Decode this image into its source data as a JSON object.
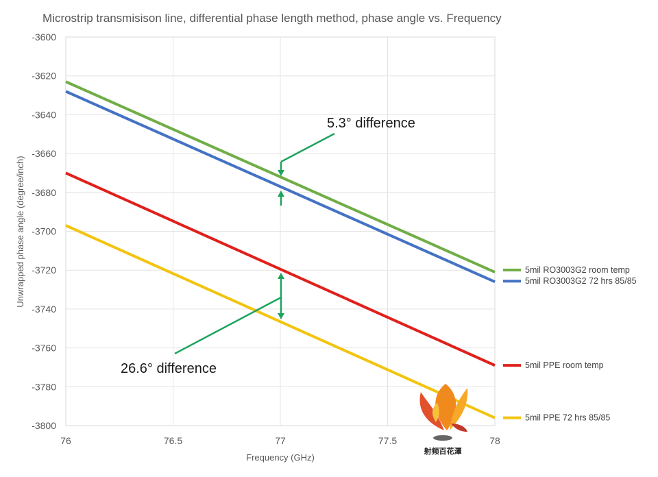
{
  "chart_data": {
    "type": "line",
    "title": "Microstrip transmisison line, differential phase length method, phase angle vs. Frequency",
    "xlabel": "Frequency (GHz)",
    "ylabel": "Unwrapped phase angle (degree/inch)",
    "xlim": [
      76,
      78
    ],
    "ylim": [
      -3800,
      -3600
    ],
    "x_ticks": [
      "76",
      "76.5",
      "77",
      "77.5",
      "78"
    ],
    "y_ticks": [
      "-3600",
      "-3620",
      "-3640",
      "-3660",
      "-3680",
      "-3700",
      "-3720",
      "-3740",
      "-3760",
      "-3780",
      "-3800"
    ],
    "grid": true,
    "legend_position": "right",
    "series": [
      {
        "name": "5mil RO3003G2 room temp",
        "color": "#70ad47",
        "x": [
          76,
          78
        ],
        "y": [
          -3623,
          -3721
        ]
      },
      {
        "name": "5mil RO3003G2 72 hrs 85/85",
        "color": "#4472c4",
        "x": [
          76,
          78
        ],
        "y": [
          -3628,
          -3726
        ]
      },
      {
        "name": "5mil PPE room temp",
        "color": "#e0201b",
        "x": [
          76,
          78
        ],
        "y": [
          -3670,
          -3769
        ]
      },
      {
        "name": "5mil PPE 72 hrs 85/85",
        "color": "#f2c40f",
        "x": [
          76,
          78
        ],
        "y": [
          -3697,
          -3796
        ]
      }
    ],
    "annotations": [
      {
        "text": "5.3° difference"
      },
      {
        "text": "26.6° difference"
      }
    ],
    "annotation_color": "#1fa35f",
    "watermark": {
      "text": "射频百花潭"
    }
  }
}
